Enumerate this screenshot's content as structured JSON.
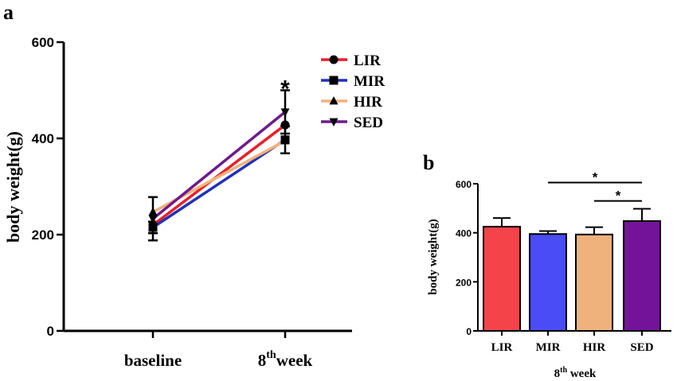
{
  "chart_data": [
    {
      "panel": "a",
      "type": "line",
      "ylabel": "body weight(g)",
      "xlabel": "",
      "ylim": [
        0,
        600
      ],
      "yticks": [
        0,
        200,
        400,
        600
      ],
      "categories": [
        {
          "main": "baseline",
          "sup": "",
          "suffix": ""
        },
        {
          "main": "8",
          "sup": "th",
          "suffix": "week"
        }
      ],
      "series": [
        {
          "name": "LIR",
          "color": "#e8202a",
          "marker": "circle",
          "values": [
            220,
            428
          ],
          "errors": [
            null,
            null
          ]
        },
        {
          "name": "MIR",
          "color": "#2230b8",
          "marker": "square",
          "values": [
            215,
            397
          ],
          "errors": [
            12,
            28
          ]
        },
        {
          "name": "HIR",
          "color": "#f2b27a",
          "marker": "triangle-up",
          "values": [
            247,
            395
          ],
          "errors": [
            null,
            null
          ]
        },
        {
          "name": "SED",
          "color": "#6f1a8e",
          "marker": "triangle-down",
          "values": [
            233,
            455
          ],
          "errors": [
            45,
            45
          ]
        }
      ],
      "annotations": [
        {
          "text": "*",
          "category_index": 1,
          "value": 510
        }
      ],
      "legend": "top-right"
    },
    {
      "panel": "b",
      "type": "bar",
      "ylabel": "body weight(g)",
      "xlabel": {
        "main": "8",
        "sup": "th",
        "suffix": " week"
      },
      "ylim": [
        0,
        600
      ],
      "yticks": [
        0,
        200,
        400,
        600
      ],
      "categories": [
        "LIR",
        "MIR",
        "HIR",
        "SED"
      ],
      "values": [
        425,
        395,
        393,
        448
      ],
      "errors": [
        35,
        12,
        30,
        50
      ],
      "colors": [
        "#f5434a",
        "#4a4cf5",
        "#f0b27c",
        "#73139a"
      ],
      "significance": [
        {
          "from": 1,
          "to": 3,
          "text": "*",
          "level": 605
        },
        {
          "from": 2,
          "to": 3,
          "text": "*",
          "level": 530
        }
      ]
    }
  ]
}
